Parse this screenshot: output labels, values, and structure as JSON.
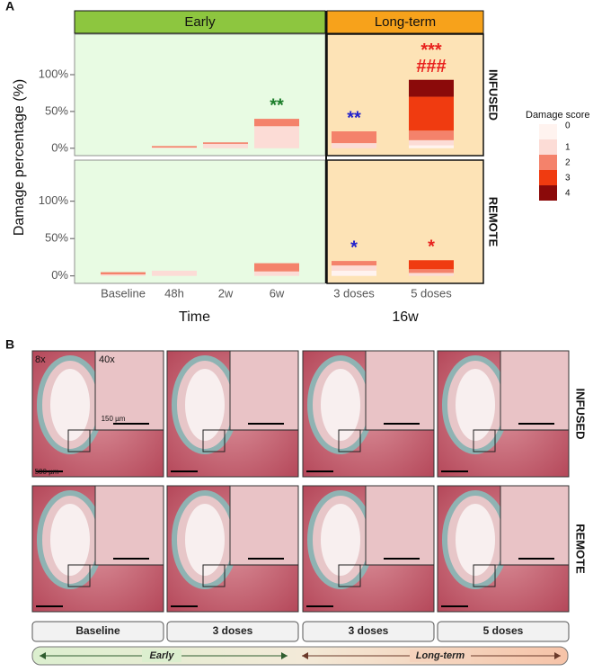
{
  "panel_labels": [
    "A",
    "B"
  ],
  "chart_data": {
    "type": "bar",
    "stacked": true,
    "ylabel": "Damage percentage (%)",
    "ylim": [
      -10,
      155
    ],
    "yticks": [
      {
        "value": 0,
        "label": "0%"
      },
      {
        "value": 50,
        "label": "50%"
      },
      {
        "value": 100,
        "label": "100%"
      }
    ],
    "legend_title": "Damage score",
    "legend_position": "right",
    "groups": [
      {
        "name": "Early",
        "label": "Time",
        "categories": [
          "Baseline",
          "48h",
          "2w",
          "6w"
        ],
        "color": "#8dc63f",
        "background": "#e8fbe3"
      },
      {
        "name": "Long-term",
        "label": "16w",
        "categories": [
          "3 doses",
          "5 doses"
        ],
        "color": "#f7a21b",
        "background": "#fde3b6"
      }
    ],
    "panels": [
      {
        "name": "INFUSED",
        "series": [
          {
            "name": "0",
            "color": "#fff3ef",
            "values": [
              0,
              0,
              0,
              0,
              0,
              4
            ]
          },
          {
            "name": "1",
            "color": "#fcdcd6",
            "values": [
              0,
              1,
              6,
              30,
              7,
              7
            ]
          },
          {
            "name": "2",
            "color": "#f4826b",
            "values": [
              0,
              2,
              2,
              10,
              16,
              13
            ]
          },
          {
            "name": "3",
            "color": "#f03b10",
            "values": [
              0,
              0,
              0,
              0,
              0,
              46
            ]
          },
          {
            "name": "4",
            "color": "#8b0a0a",
            "values": [
              0,
              0,
              0,
              0,
              0,
              23
            ]
          }
        ],
        "annotations": [
          null,
          null,
          null,
          {
            "lines": [
              "**"
            ],
            "color": "#1b7d2a"
          },
          {
            "lines": [
              "**"
            ],
            "color": "#2222cc"
          },
          {
            "lines": [
              "***",
              "###"
            ],
            "color": "#e8211d"
          }
        ]
      },
      {
        "name": "REMOTE",
        "series": [
          {
            "name": "0",
            "color": "#fff3ef",
            "values": [
              0,
              0,
              0,
              0,
              7,
              0
            ]
          },
          {
            "name": "1",
            "color": "#fcdcd6",
            "values": [
              2,
              7,
              0,
              6,
              7,
              4
            ]
          },
          {
            "name": "2",
            "color": "#f4826b",
            "values": [
              3,
              0,
              0,
              11,
              6,
              5
            ]
          },
          {
            "name": "3",
            "color": "#f03b10",
            "values": [
              0,
              0,
              0,
              0,
              0,
              12
            ]
          },
          {
            "name": "4",
            "color": "#8b0a0a",
            "values": [
              0,
              0,
              0,
              0,
              0,
              0
            ]
          }
        ],
        "annotations": [
          null,
          null,
          null,
          null,
          {
            "lines": [
              "*"
            ],
            "color": "#2222cc"
          },
          {
            "lines": [
              "*"
            ],
            "color": "#e8211d"
          }
        ]
      }
    ]
  },
  "micrographs": {
    "row_labels": [
      "INFUSED",
      "REMOTE"
    ],
    "column_labels": [
      "Baseline",
      "3 doses",
      "3 doses",
      "5 doses"
    ],
    "magnifications": [
      "8x",
      "40x"
    ],
    "scale_bars": [
      "150 µm",
      "500 µm"
    ],
    "timeline": [
      "Early",
      "Long-term"
    ]
  }
}
